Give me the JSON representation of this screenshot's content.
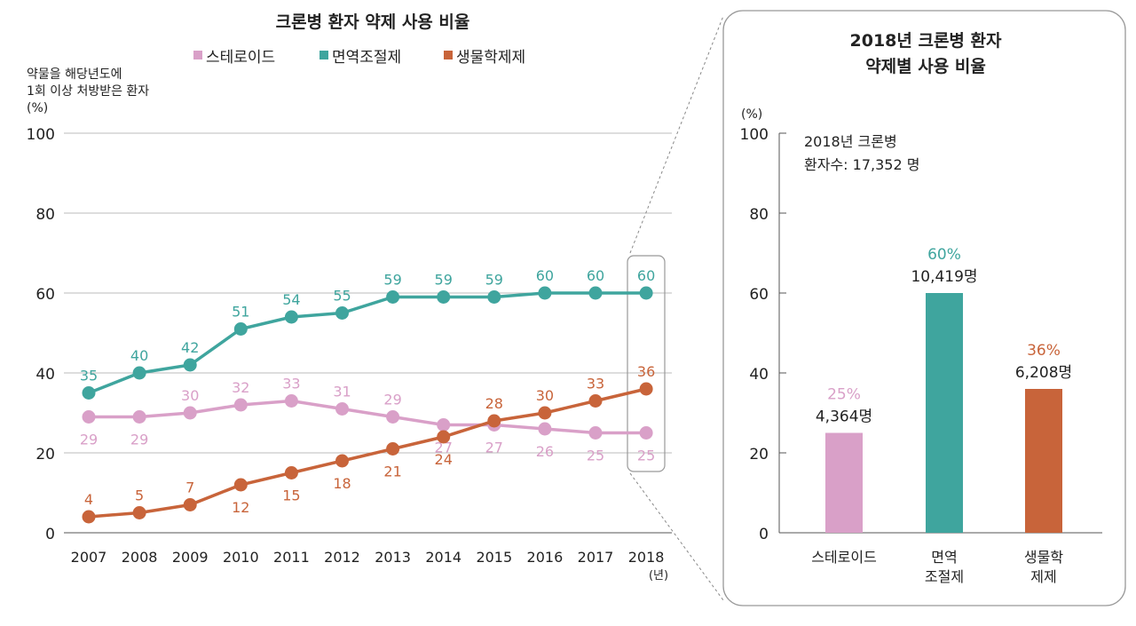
{
  "chart_data": [
    {
      "type": "line",
      "title": "크론병 환자 약제 사용 비율",
      "ylabel_lines": [
        "약물을 해당년도에",
        "1회 이상 처방받은 환자",
        "(%)"
      ],
      "xlabel": "(년)",
      "ylim": [
        0,
        100
      ],
      "yticks": [
        0,
        20,
        40,
        60,
        80,
        100
      ],
      "grid": true,
      "legend_position": "top",
      "categories": [
        "2007",
        "2008",
        "2009",
        "2010",
        "2011",
        "2012",
        "2013",
        "2014",
        "2015",
        "2016",
        "2017",
        "2018"
      ],
      "series": [
        {
          "name": "스테로이드",
          "color": "#d9a0c8",
          "values": [
            29,
            29,
            30,
            32,
            33,
            31,
            29,
            27,
            27,
            26,
            25,
            25
          ]
        },
        {
          "name": "면역조절제",
          "color": "#3fa59e",
          "values": [
            35,
            40,
            42,
            51,
            54,
            55,
            59,
            59,
            59,
            60,
            60,
            60
          ]
        },
        {
          "name": "생물학제제",
          "color": "#c8643a",
          "values": [
            4,
            5,
            7,
            12,
            15,
            18,
            21,
            24,
            28,
            30,
            33,
            36
          ]
        }
      ]
    },
    {
      "type": "bar",
      "title_lines": [
        "2018년 크론병 환자",
        "약제별 사용 비율"
      ],
      "ylabel": "(%)",
      "ylim": [
        0,
        100
      ],
      "yticks": [
        0,
        20,
        40,
        60,
        80,
        100
      ],
      "annotation_lines": [
        "2018년 크론병",
        "환자수: 17,352 명"
      ],
      "categories": [
        [
          "스테로이드"
        ],
        [
          "면역",
          "조절제"
        ],
        [
          "생물학",
          "제제"
        ]
      ],
      "values": [
        25,
        60,
        36
      ],
      "value_labels": [
        "25%",
        "60%",
        "36%"
      ],
      "count_labels": [
        "4,364명",
        "10,419명",
        "6,208명"
      ],
      "colors": [
        "#d9a0c8",
        "#3fa59e",
        "#c8643a"
      ]
    }
  ]
}
